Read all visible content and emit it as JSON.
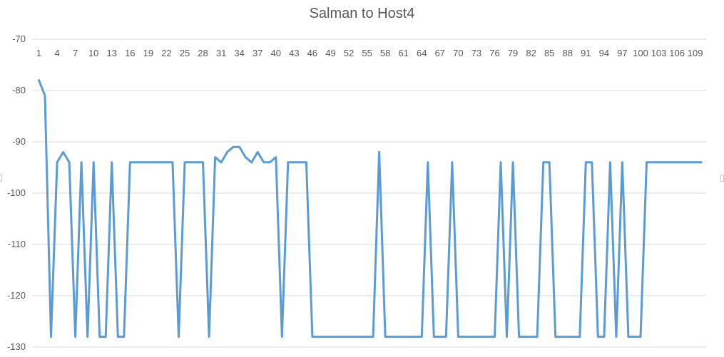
{
  "chart_data": {
    "type": "line",
    "title": "Salman to Host4",
    "xlabel": "",
    "ylabel": "",
    "ylim": [
      -130,
      -70
    ],
    "yticks": [
      -70,
      -80,
      -90,
      -100,
      -110,
      -120,
      -130
    ],
    "xlim": [
      1,
      110
    ],
    "xtick_labels": [
      1,
      4,
      7,
      10,
      13,
      16,
      19,
      22,
      25,
      28,
      31,
      34,
      37,
      40,
      43,
      46,
      49,
      52,
      55,
      58,
      61,
      64,
      67,
      70,
      73,
      76,
      79,
      82,
      85,
      88,
      91,
      94,
      97,
      100,
      103,
      106,
      109
    ],
    "x_axis_position": "top (crosses at -70)",
    "grid": "horizontal major gridlines",
    "legend": "none",
    "series": [
      {
        "color": "#5b9bd5",
        "x": [
          1,
          2,
          3,
          4,
          5,
          6,
          7,
          8,
          9,
          10,
          11,
          12,
          13,
          14,
          15,
          16,
          17,
          18,
          19,
          20,
          21,
          22,
          23,
          24,
          25,
          26,
          27,
          28,
          29,
          30,
          31,
          32,
          33,
          34,
          35,
          36,
          37,
          38,
          39,
          40,
          41,
          42,
          43,
          44,
          45,
          46,
          47,
          48,
          49,
          50,
          51,
          52,
          53,
          54,
          55,
          56,
          57,
          58,
          59,
          60,
          61,
          62,
          63,
          64,
          65,
          66,
          67,
          68,
          69,
          70,
          71,
          72,
          73,
          74,
          75,
          76,
          77,
          78,
          79,
          80,
          81,
          82,
          83,
          84,
          85,
          86,
          87,
          88,
          89,
          90,
          91,
          92,
          93,
          94,
          95,
          96,
          97,
          98,
          99,
          100,
          101,
          102,
          103,
          104,
          105,
          106,
          107,
          108,
          109,
          110
        ],
        "values": [
          -78,
          -81,
          -128,
          -94,
          -92,
          -94,
          -128,
          -94,
          -128,
          -94,
          -128,
          -128,
          -94,
          -128,
          -128,
          -94,
          -94,
          -94,
          -94,
          -94,
          -94,
          -94,
          -94,
          -128,
          -94,
          -94,
          -94,
          -94,
          -128,
          -93,
          -94,
          -92,
          -91,
          -91,
          -93,
          -94,
          -92,
          -94,
          -94,
          -93,
          -128,
          -94,
          -94,
          -94,
          -94,
          -128,
          -128,
          -128,
          -128,
          -128,
          -128,
          -128,
          -128,
          -128,
          -128,
          -128,
          -92,
          -128,
          -128,
          -128,
          -128,
          -128,
          -128,
          -128,
          -94,
          -128,
          -128,
          -128,
          -94,
          -128,
          -128,
          -128,
          -128,
          -128,
          -128,
          -128,
          -94,
          -128,
          -94,
          -128,
          -128,
          -128,
          -128,
          -94,
          -94,
          -128,
          -128,
          -128,
          -128,
          -128,
          -94,
          -94,
          -128,
          -128,
          -94,
          -128,
          -94,
          -128,
          -128,
          -128,
          -94,
          -94,
          -94,
          -94,
          -94,
          -94,
          -94,
          -94,
          -94,
          -94
        ]
      }
    ]
  }
}
